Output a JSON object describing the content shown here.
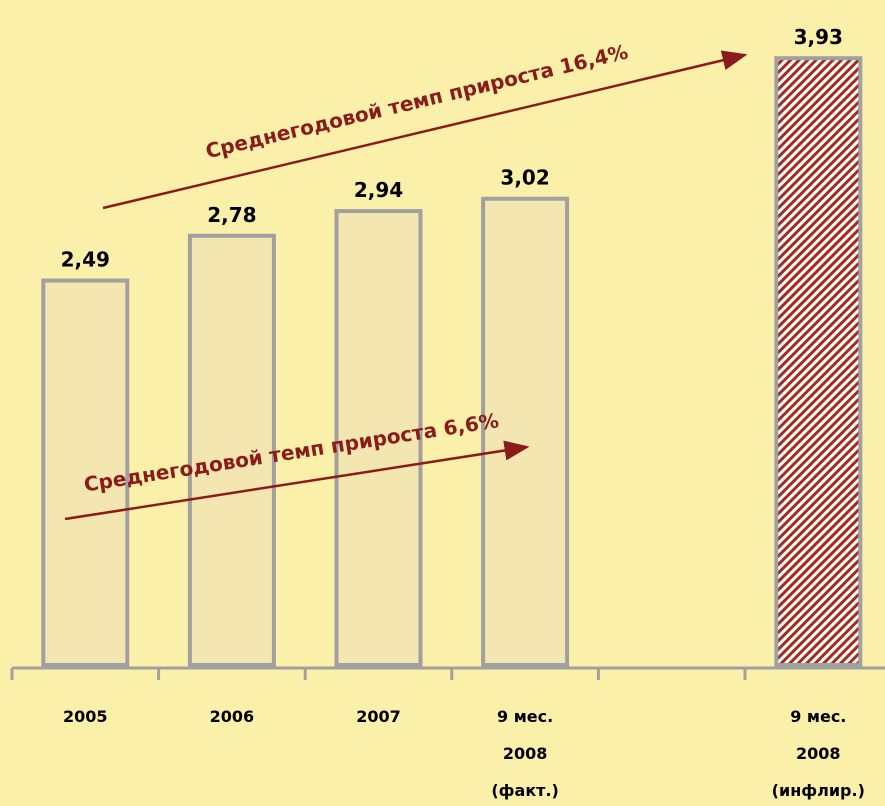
{
  "chart_data": {
    "type": "bar",
    "categories": [
      "2005",
      "2006",
      "2007",
      [
        "9 мес.",
        "2008",
        "(факт.)"
      ],
      null,
      [
        "9 мес.",
        "2008",
        "(инфлир.)"
      ]
    ],
    "values": [
      2.49,
      2.78,
      2.94,
      3.02,
      null,
      3.93
    ],
    "value_labels": [
      "2,49",
      "2,78",
      "2,94",
      "3,02",
      null,
      "3,93"
    ],
    "colors": [
      "#f3e6b0",
      "#f3e6b0",
      "#f3e6b0",
      "#f3e6b0",
      null,
      "#a52a1a"
    ],
    "patterns": [
      null,
      null,
      null,
      null,
      null,
      "hatch"
    ],
    "ylim": [
      0,
      4.2
    ],
    "annotations": [
      {
        "text": "Среднегодовой темп прироста 16,4%",
        "color": "#8b1a1a"
      },
      {
        "text": "Среднегодовой темп прироста 6,6%",
        "color": "#8b1a1a"
      }
    ]
  }
}
